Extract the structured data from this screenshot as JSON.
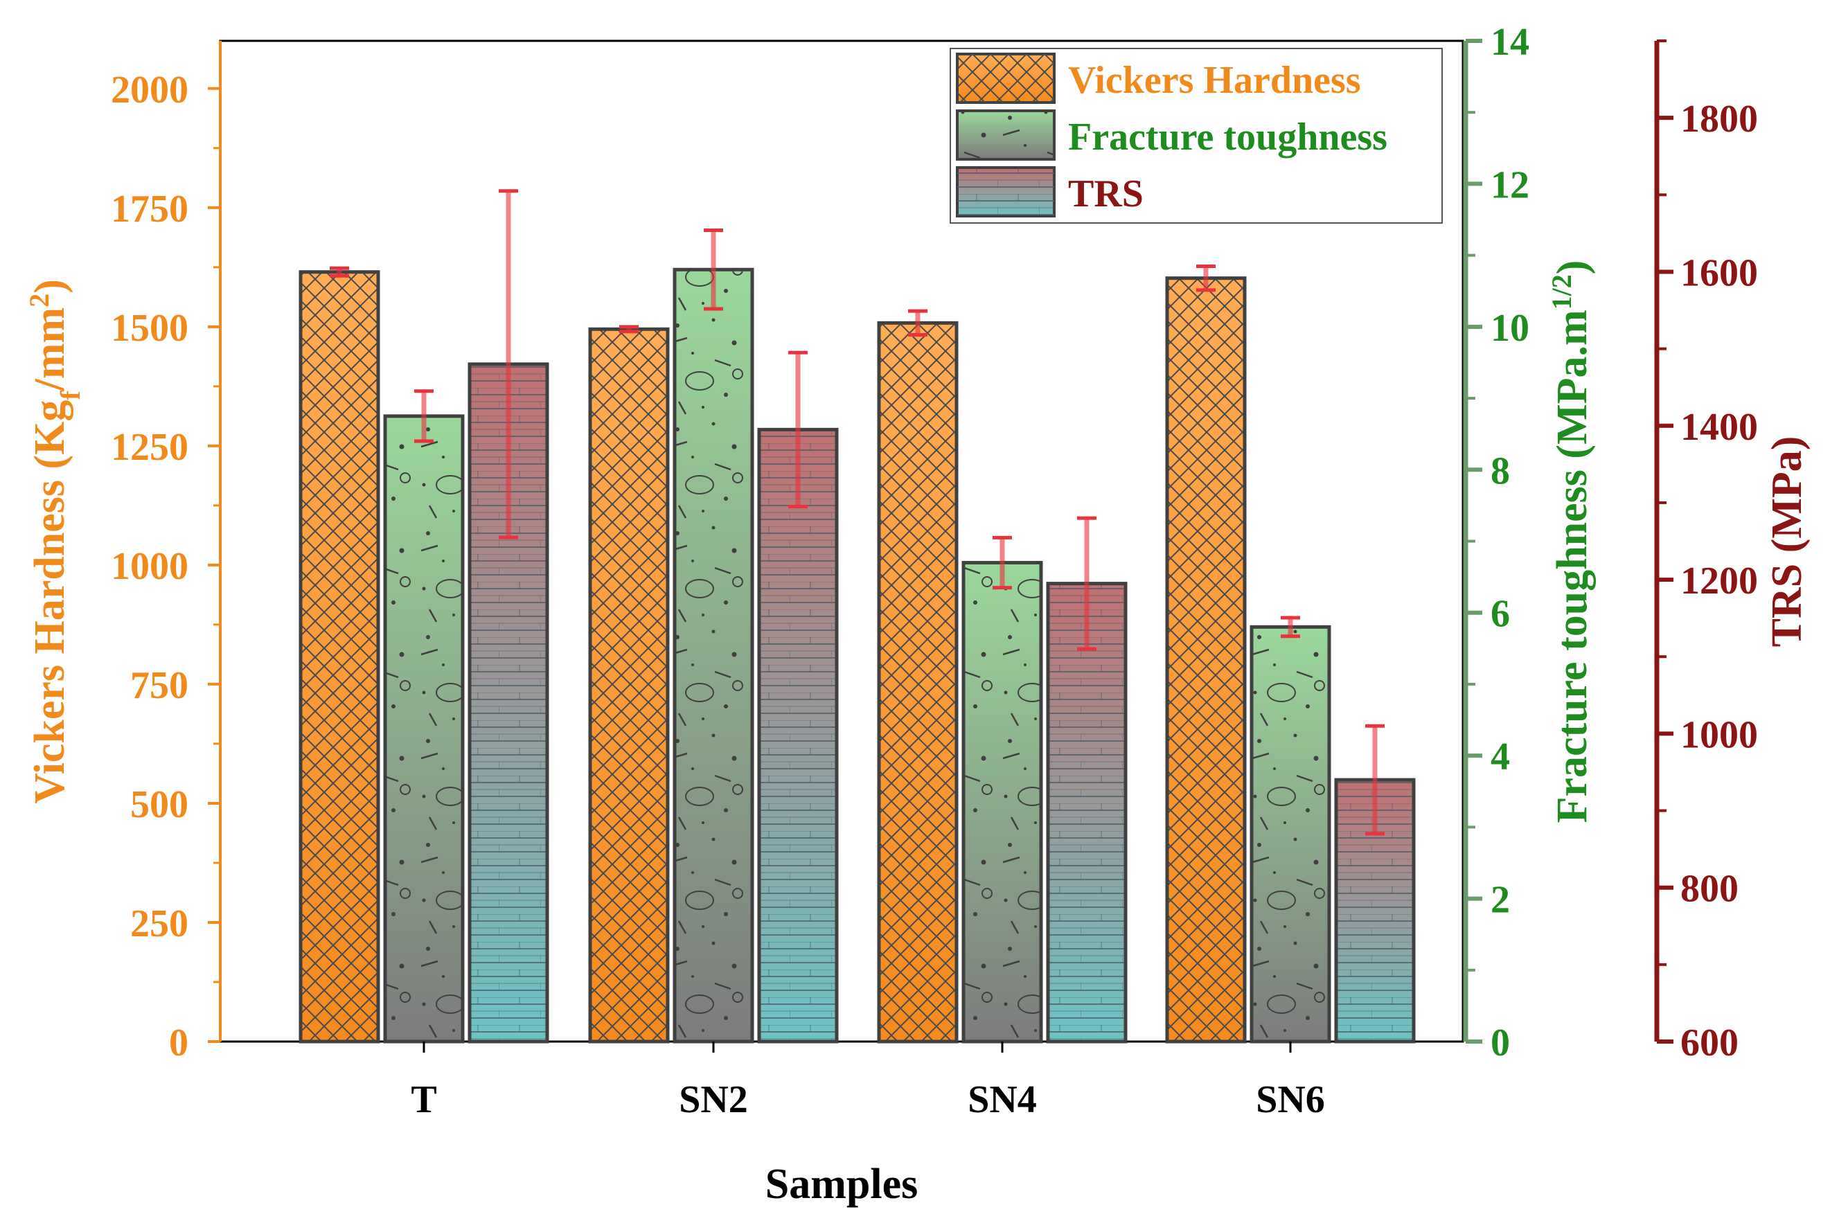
{
  "chart_data": {
    "type": "bar",
    "categories": [
      "T",
      "SN2",
      "SN4",
      "SN6"
    ],
    "xlabel": "Samples",
    "series": [
      {
        "name": "Vickers Hardness",
        "axis": "left",
        "values": [
          1615,
          1495,
          1508,
          1602
        ],
        "errors": [
          8,
          5,
          25,
          25
        ]
      },
      {
        "name": "Fracture toughness",
        "axis": "right1",
        "values": [
          8.75,
          10.8,
          6.7,
          5.8
        ],
        "errors": [
          0.35,
          0.55,
          0.35,
          0.13
        ]
      },
      {
        "name": "TRS",
        "axis": "right2",
        "values": [
          1480,
          1395,
          1195,
          940
        ],
        "errors": [
          225,
          100,
          85,
          70
        ]
      }
    ],
    "axes": {
      "left": {
        "label_main": "Vickers Hardness (Kg",
        "label_sub": "f",
        "label_mid": "/mm",
        "label_sup": "2",
        "label_end": ")",
        "ylim": [
          0,
          2100
        ],
        "ticks": [
          0,
          250,
          500,
          750,
          1000,
          1250,
          1500,
          1750,
          2000
        ],
        "tick_labels": [
          "0",
          "250",
          "500",
          "750",
          "1000",
          "1250",
          "1500",
          "1750",
          "2000"
        ],
        "color": "#f08a1c"
      },
      "right1": {
        "label_main": "Fracture toughness (MPa.m",
        "label_sup": "1/2",
        "label_end": ")",
        "ylim": [
          0,
          14
        ],
        "ticks": [
          0,
          2,
          4,
          6,
          8,
          10,
          12,
          14
        ],
        "tick_labels": [
          "0",
          "2",
          "4",
          "6",
          "8",
          "10",
          "12",
          "14"
        ],
        "color": "#1e8c1e",
        "line_color": "#6b9a6b"
      },
      "right2": {
        "label": "TRS (MPa)",
        "ylim": [
          600,
          1900
        ],
        "ticks": [
          600,
          800,
          1000,
          1200,
          1400,
          1600,
          1800
        ],
        "tick_labels": [
          "600",
          "800",
          "1000",
          "1200",
          "1400",
          "1600",
          "1800"
        ],
        "color": "#8b1414"
      }
    },
    "legend": {
      "position": "top-right",
      "entries": [
        "Vickers Hardness",
        "Fracture toughness",
        "TRS"
      ],
      "colors": [
        "#f08a1c",
        "#1e8c1e",
        "#8b1414"
      ]
    },
    "colors": {
      "vickers_fill_top": "#ffac55",
      "vickers_fill_bottom": "#f58a1e",
      "fracture_fill_top": "#9ad89a",
      "fracture_fill_bottom": "#7c7c7c",
      "trs_fill_top": "#c07070",
      "trs_fill_bottom": "#6cc4c4",
      "error_bar": "#e8323c",
      "bar_edge": "#404040"
    }
  }
}
